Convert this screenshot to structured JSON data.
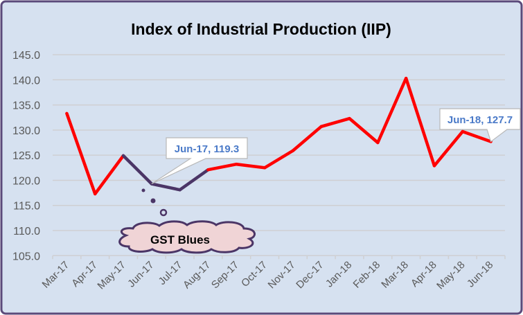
{
  "chart_data": {
    "type": "line",
    "title": "Index of Industrial Production (IIP)",
    "xlabel": "",
    "ylabel": "",
    "categories": [
      "Mar-17",
      "Apr-17",
      "May-17",
      "Jun-17",
      "Jul-17",
      "Aug-17",
      "Sep-17",
      "Oct-17",
      "Nov-17",
      "Dec-17",
      "Jan-18",
      "Feb-18",
      "Mar-18",
      "Apr-18",
      "May-18",
      "Jun-18"
    ],
    "series": [
      {
        "values": [
          133.3,
          117.3,
          124.9,
          119.3,
          118.1,
          122.1,
          123.2,
          122.5,
          125.9,
          130.7,
          132.3,
          127.5,
          140.3,
          122.9,
          129.7,
          127.7
        ]
      }
    ],
    "highlight_range": [
      "May-17",
      "Aug-17"
    ],
    "ylim": [
      105,
      145
    ],
    "yticks": [
      "105.0",
      "110.0",
      "115.0",
      "120.0",
      "125.0",
      "130.0",
      "135.0",
      "140.0",
      "145.0"
    ],
    "grid": true,
    "legend": "none",
    "colors": {
      "line": "#ff0000",
      "highlight": "#4b3566",
      "frame": "#5b4a7a",
      "background": "#d6e1f0",
      "label_text": "#4a7ac8",
      "cloud_fill": "#f0d4d6"
    },
    "annotations": [
      {
        "text": "Jun-17, 119.3",
        "category": "Jun-17"
      },
      {
        "text": "Jun-18, 127.7",
        "category": "Jun-18"
      },
      {
        "text": "GST Blues",
        "shape": "cloud"
      }
    ]
  }
}
